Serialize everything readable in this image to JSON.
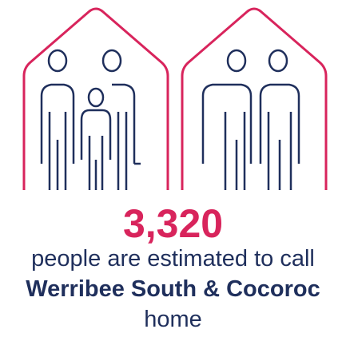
{
  "stat": "3,320",
  "caption": [
    "people are estimated to call",
    "Werribee South & Cocoroc",
    "home"
  ]
}
